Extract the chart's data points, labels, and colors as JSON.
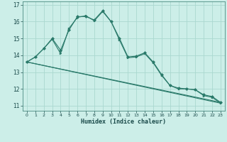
{
  "xlabel": "Humidex (Indice chaleur)",
  "bg_color": "#cceee8",
  "grid_color": "#aad8d0",
  "line_color": "#2a7a6a",
  "xlim": [
    -0.5,
    23.5
  ],
  "ylim": [
    10.7,
    17.2
  ],
  "yticks": [
    11,
    12,
    13,
    14,
    15,
    16,
    17
  ],
  "xticks": [
    0,
    1,
    2,
    3,
    4,
    5,
    6,
    7,
    8,
    9,
    10,
    11,
    12,
    13,
    14,
    15,
    16,
    17,
    18,
    19,
    20,
    21,
    22,
    23
  ],
  "series": [
    {
      "x": [
        0,
        1,
        2,
        3,
        4,
        5,
        6,
        7,
        8,
        9,
        10,
        11,
        12,
        13,
        14,
        15,
        16,
        17,
        18,
        19,
        20,
        21,
        22,
        23
      ],
      "y": [
        13.6,
        13.9,
        14.4,
        15.0,
        14.3,
        15.5,
        16.3,
        16.3,
        16.1,
        16.65,
        16.0,
        15.0,
        13.9,
        13.95,
        14.15,
        13.6,
        12.85,
        12.2,
        12.05,
        12.0,
        11.95,
        11.65,
        11.55,
        11.2
      ],
      "marker": "D"
    },
    {
      "x": [
        0,
        1,
        2,
        3,
        4,
        5,
        6,
        7,
        8,
        9,
        10,
        11,
        12,
        13,
        14,
        15,
        16,
        17,
        18,
        19,
        20,
        21,
        22,
        23
      ],
      "y": [
        13.6,
        13.9,
        14.4,
        14.95,
        14.1,
        15.6,
        16.25,
        16.35,
        16.05,
        16.6,
        16.0,
        14.9,
        13.85,
        13.9,
        14.1,
        13.55,
        12.8,
        12.2,
        12.0,
        12.0,
        11.95,
        11.6,
        11.5,
        11.15
      ],
      "marker": ">"
    },
    {
      "x": [
        0,
        23
      ],
      "y": [
        13.6,
        11.2
      ],
      "marker": null
    },
    {
      "x": [
        0,
        23
      ],
      "y": [
        13.6,
        11.15
      ],
      "marker": null
    }
  ]
}
